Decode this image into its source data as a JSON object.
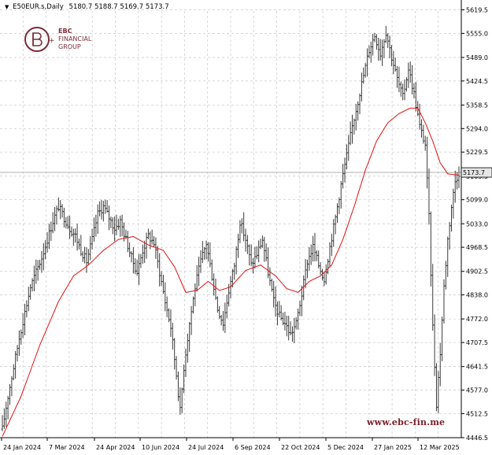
{
  "header": {
    "symbol_line": "E50EUR.s,Daily",
    "ohlc": "5180.7 5188.7 5169.7 5173.7"
  },
  "logo": {
    "line1": "EBC",
    "line2": "FINANCIAL",
    "line3": "GROUP"
  },
  "watermark": "www.ebc-fin.me",
  "colors": {
    "bars": "#3a3a3a",
    "ma_line": "#e01010",
    "grid": "#c8c8c8",
    "price_tag_bg": "#e6e6e6",
    "last_line": "#b0b0b0"
  },
  "chart_data": {
    "type": "ohlc",
    "symbol": "E50EUR.s",
    "timeframe": "Daily",
    "last_price_label": "5173.7",
    "last_price": 5173.7,
    "y_ticks": [
      "5619.5",
      "5555.0",
      "5489.0",
      "5424.5",
      "5358.5",
      "5294.0",
      "5229.5",
      "5163.5",
      "5099.0",
      "5033.0",
      "4968.5",
      "4902.5",
      "4838.0",
      "4772.0",
      "4707.5",
      "4641.5",
      "4577.0",
      "4512.5",
      "4446.5"
    ],
    "ylim": [
      4446.5,
      5619.5
    ],
    "x_ticks": [
      "24 Jan 2024",
      "7 Mar 2024",
      "24 Apr 2024",
      "10 Jun 2024",
      "24 Jul 2024",
      "6 Sep 2024",
      "22 Oct 2024",
      "5 Dec 2024",
      "27 Jan 2025",
      "12 Mar 2025"
    ],
    "close_path": [
      [
        0,
        4470
      ],
      [
        3,
        4560
      ],
      [
        6,
        4640
      ],
      [
        9,
        4720
      ],
      [
        12,
        4790
      ],
      [
        15,
        4860
      ],
      [
        18,
        4900
      ],
      [
        21,
        4940
      ],
      [
        24,
        4990
      ],
      [
        27,
        5040
      ],
      [
        30,
        5080
      ],
      [
        33,
        5050
      ],
      [
        36,
        5020
      ],
      [
        39,
        5000
      ],
      [
        42,
        4960
      ],
      [
        45,
        4930
      ],
      [
        48,
        4990
      ],
      [
        51,
        5060
      ],
      [
        54,
        5080
      ],
      [
        57,
        5050
      ],
      [
        60,
        5020
      ],
      [
        63,
        5040
      ],
      [
        66,
        4990
      ],
      [
        69,
        4940
      ],
      [
        72,
        4900
      ],
      [
        75,
        4960
      ],
      [
        78,
        5000
      ],
      [
        81,
        4980
      ],
      [
        84,
        4900
      ],
      [
        87,
        4820
      ],
      [
        90,
        4750
      ],
      [
        93,
        4620
      ],
      [
        95,
        4520
      ],
      [
        97,
        4640
      ],
      [
        100,
        4760
      ],
      [
        103,
        4860
      ],
      [
        106,
        4930
      ],
      [
        109,
        4980
      ],
      [
        112,
        4890
      ],
      [
        115,
        4800
      ],
      [
        118,
        4760
      ],
      [
        121,
        4850
      ],
      [
        124,
        4920
      ],
      [
        127,
        5040
      ],
      [
        130,
        4990
      ],
      [
        133,
        4920
      ],
      [
        136,
        4950
      ],
      [
        139,
        4990
      ],
      [
        142,
        4900
      ],
      [
        145,
        4820
      ],
      [
        148,
        4780
      ],
      [
        151,
        4760
      ],
      [
        154,
        4730
      ],
      [
        157,
        4760
      ],
      [
        160,
        4840
      ],
      [
        163,
        4930
      ],
      [
        166,
        4970
      ],
      [
        169,
        4920
      ],
      [
        172,
        4880
      ],
      [
        175,
        4970
      ],
      [
        178,
        5050
      ],
      [
        181,
        5140
      ],
      [
        184,
        5220
      ],
      [
        187,
        5300
      ],
      [
        190,
        5370
      ],
      [
        193,
        5440
      ],
      [
        196,
        5510
      ],
      [
        199,
        5550
      ],
      [
        202,
        5500
      ],
      [
        205,
        5560
      ],
      [
        208,
        5490
      ],
      [
        211,
        5430
      ],
      [
        214,
        5380
      ],
      [
        217,
        5460
      ],
      [
        220,
        5390
      ],
      [
        223,
        5300
      ],
      [
        226,
        5250
      ],
      [
        228,
        5050
      ],
      [
        230,
        4750
      ],
      [
        232,
        4540
      ],
      [
        234,
        4680
      ],
      [
        236,
        4860
      ],
      [
        238,
        4990
      ],
      [
        240,
        5080
      ],
      [
        242,
        5150
      ],
      [
        244,
        5173.7
      ]
    ],
    "ma": [
      [
        0,
        4450
      ],
      [
        10,
        4560
      ],
      [
        20,
        4700
      ],
      [
        30,
        4820
      ],
      [
        38,
        4890
      ],
      [
        46,
        4920
      ],
      [
        54,
        4960
      ],
      [
        62,
        4990
      ],
      [
        70,
        4998
      ],
      [
        78,
        4975
      ],
      [
        86,
        4960
      ],
      [
        92,
        4915
      ],
      [
        98,
        4845
      ],
      [
        104,
        4850
      ],
      [
        110,
        4875
      ],
      [
        116,
        4850
      ],
      [
        122,
        4860
      ],
      [
        130,
        4905
      ],
      [
        138,
        4920
      ],
      [
        146,
        4890
      ],
      [
        152,
        4855
      ],
      [
        158,
        4845
      ],
      [
        164,
        4875
      ],
      [
        170,
        4890
      ],
      [
        176,
        4920
      ],
      [
        182,
        4990
      ],
      [
        188,
        5080
      ],
      [
        194,
        5180
      ],
      [
        200,
        5260
      ],
      [
        206,
        5310
      ],
      [
        212,
        5335
      ],
      [
        218,
        5350
      ],
      [
        222,
        5350
      ],
      [
        226,
        5310
      ],
      [
        230,
        5260
      ],
      [
        234,
        5200
      ],
      [
        238,
        5170
      ],
      [
        244,
        5166
      ]
    ]
  }
}
